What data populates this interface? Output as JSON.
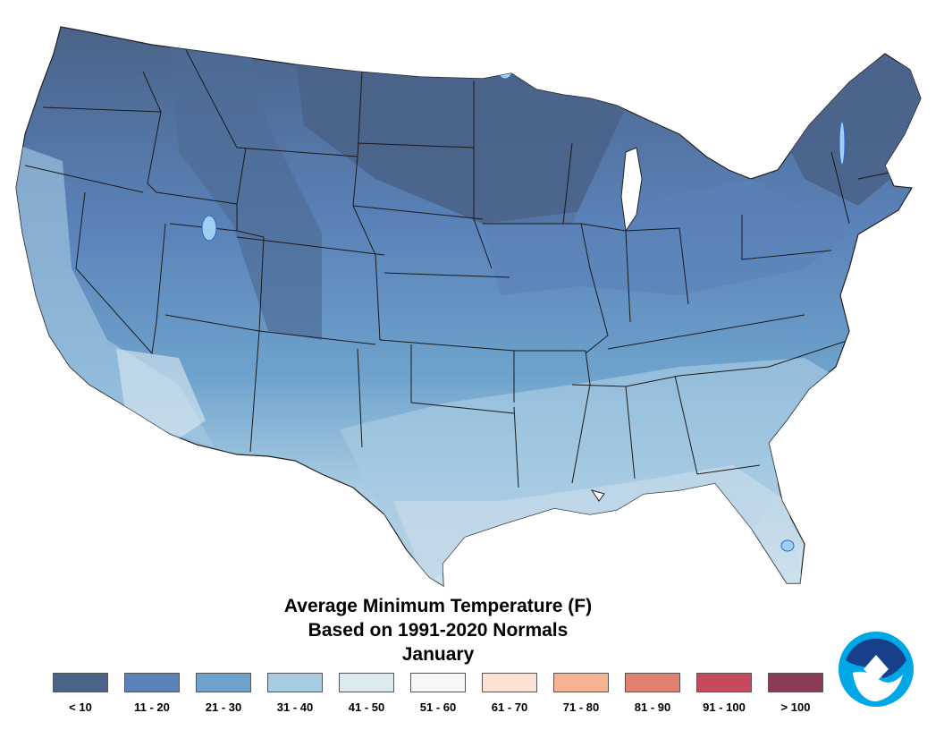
{
  "title": {
    "line1": "Average Minimum Temperature (F)",
    "line2": "Based on 1991-2020 Normals",
    "line3": "January"
  },
  "legend": [
    {
      "label": "< 10",
      "color": "#4a6388"
    },
    {
      "label": "11 - 20",
      "color": "#5a82b8"
    },
    {
      "label": "21 - 30",
      "color": "#6ea2cc"
    },
    {
      "label": "31 - 40",
      "color": "#a6cbe2"
    },
    {
      "label": "41 - 50",
      "color": "#dceaf2"
    },
    {
      "label": "51 - 60",
      "color": "#f7f7f7"
    },
    {
      "label": "61 - 70",
      "color": "#fde2d4"
    },
    {
      "label": "71 - 80",
      "color": "#f5b394"
    },
    {
      "label": "81 - 90",
      "color": "#e0806f"
    },
    {
      "label": "91 - 100",
      "color": "#c64a5c"
    },
    {
      "label": "> 100",
      "color": "#8a3b55"
    }
  ],
  "logo": {
    "name": "noaa-logo"
  }
}
